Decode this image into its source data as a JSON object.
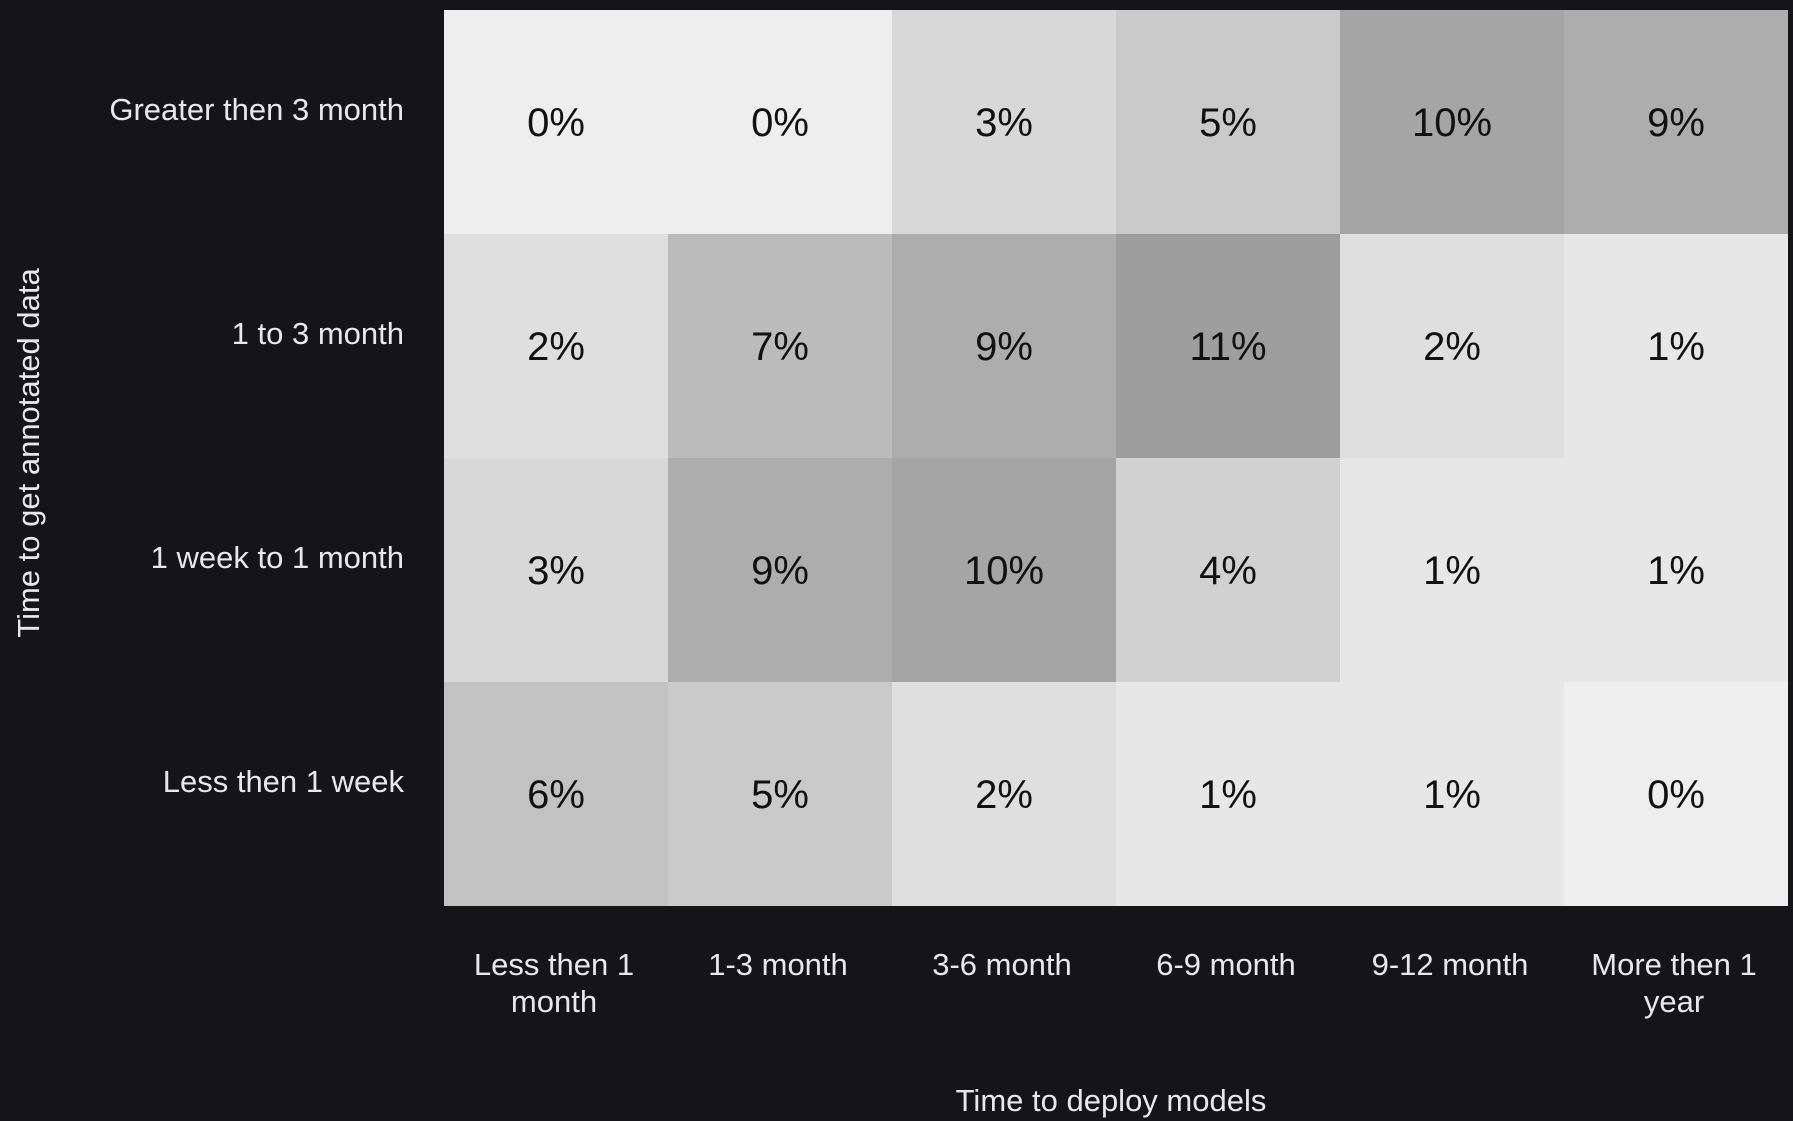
{
  "chart_data": {
    "type": "heatmap",
    "title": "",
    "xlabel": "Time to deploy models",
    "ylabel": "Time to get annotated data",
    "x_categories": [
      [
        "Less then 1",
        "month"
      ],
      [
        "1-3 month"
      ],
      [
        "3-6 month"
      ],
      [
        "6-9 month"
      ],
      [
        "9-12 month"
      ],
      [
        "More then 1",
        "year"
      ]
    ],
    "y_categories": [
      "Greater then 3 month",
      "1 to 3 month",
      "1 week to 1 month",
      "Less then 1 week"
    ],
    "values": [
      [
        0,
        0,
        3,
        5,
        10,
        9
      ],
      [
        2,
        7,
        9,
        11,
        2,
        1
      ],
      [
        3,
        9,
        10,
        4,
        1,
        1
      ],
      [
        6,
        5,
        2,
        1,
        1,
        0
      ]
    ],
    "value_suffix": "%",
    "color_scale": {
      "low": "#eeeeee",
      "high": "#9e9e9e"
    },
    "colorbar": false,
    "background": "#151517"
  }
}
